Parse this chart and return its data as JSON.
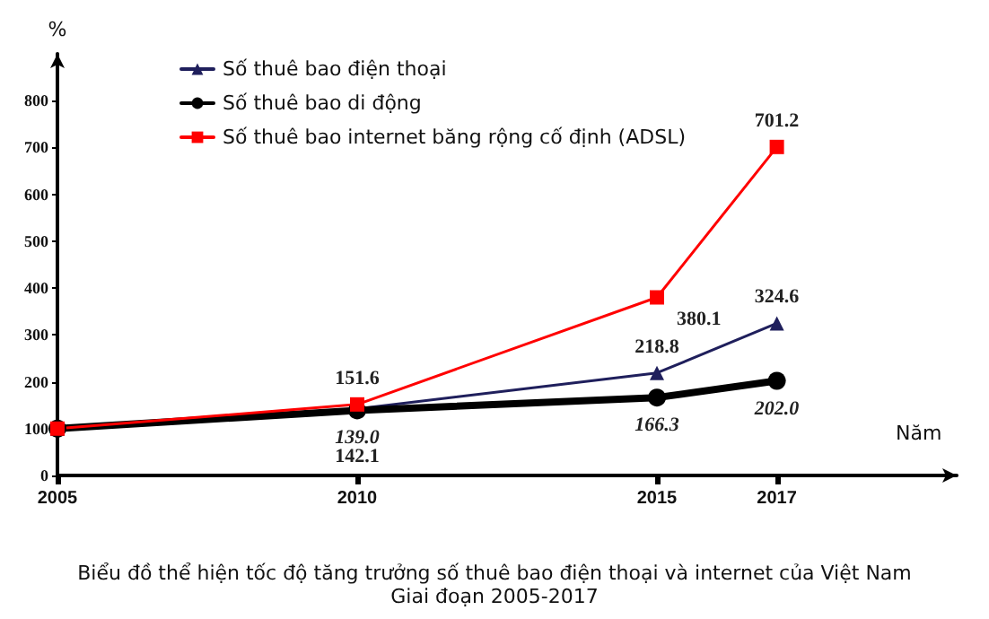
{
  "chart_data": {
    "type": "line",
    "title": "Biểu đồ thể hiện tốc độ tăng trưởng số thuê bao điện thoại và internet của Việt Nam",
    "subtitle": "Giai đoạn 2005-2017",
    "xlabel": "Năm",
    "ylabel": "%",
    "x": [
      2005,
      2010,
      2015,
      2017
    ],
    "xlim": [
      2005,
      2020
    ],
    "xticks": [
      2005,
      2010,
      2015,
      2017
    ],
    "ylim": [
      0,
      900
    ],
    "yticks": [
      0,
      100,
      200,
      300,
      400,
      500,
      600,
      700,
      800
    ],
    "series": [
      {
        "name": "Số thuê bao điện thoại",
        "color": "#1f1f5c",
        "marker": "triangle",
        "values": [
          100,
          142.1,
          218.8,
          324.6
        ],
        "value_labels": [
          null,
          "142.1",
          "218.8",
          "324.6"
        ]
      },
      {
        "name": "Số thuê bao di động",
        "color": "#000000",
        "marker": "circle",
        "values": [
          100,
          139.0,
          166.3,
          202.0
        ],
        "value_labels": [
          null,
          "139.0",
          "166.3",
          "202.0"
        ]
      },
      {
        "name": "Số thuê bao internet băng rộng cố định (ADSL)",
        "color": "#ff0000",
        "marker": "square",
        "values": [
          100,
          151.6,
          380.1,
          701.2
        ],
        "value_labels": [
          null,
          "151.6",
          "380.1",
          "701.2"
        ]
      }
    ],
    "grid": false,
    "legend": "top left"
  }
}
